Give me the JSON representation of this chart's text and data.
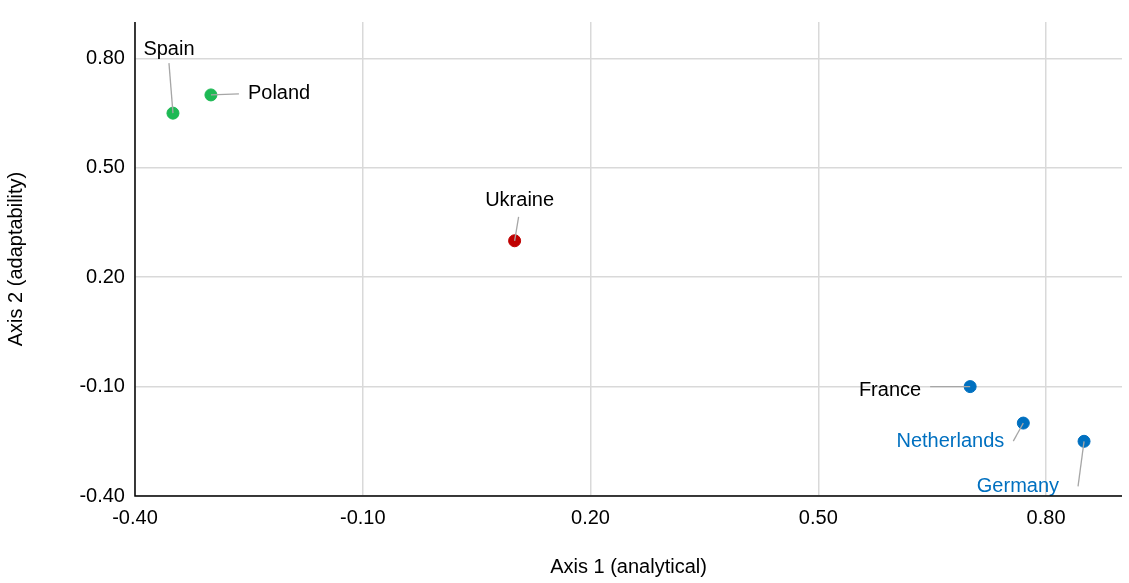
{
  "chart_data": {
    "type": "scatter",
    "xlabel": "Axis 1 (analytical)",
    "ylabel": "Axis 2 (adaptability)",
    "x": [
      -0.35,
      -0.3,
      0.1,
      0.7,
      0.77,
      0.85
    ],
    "values": [
      0.65,
      0.7,
      0.3,
      -0.1,
      -0.2,
      -0.25
    ],
    "colors": [
      "#1db954",
      "#1db954",
      "#c00000",
      "#0070c0",
      "#0070c0",
      "#0070c0"
    ],
    "xlim": [
      -0.4,
      0.9
    ],
    "ylim": [
      -0.4,
      0.9
    ],
    "xticks": [
      {
        "value": -0.4,
        "label": "-0.40"
      },
      {
        "value": -0.1,
        "label": "-0.10"
      },
      {
        "value": 0.2,
        "label": "0.20"
      },
      {
        "value": 0.5,
        "label": "0.50"
      },
      {
        "value": 0.8,
        "label": "0.80"
      }
    ],
    "yticks": [
      {
        "value": -0.4,
        "label": "-0.40"
      },
      {
        "value": -0.1,
        "label": "-0.10"
      },
      {
        "value": 0.2,
        "label": "0.20"
      },
      {
        "value": 0.5,
        "label": "0.50"
      },
      {
        "value": 0.8,
        "label": "0.80"
      }
    ],
    "grid": true,
    "marker": "circle",
    "legend": false,
    "annotations": [
      {
        "text": "Spain",
        "x": -0.35,
        "y": 0.65
      },
      {
        "text": "Poland",
        "x": -0.3,
        "y": 0.7
      },
      {
        "text": "Ukraine",
        "x": 0.1,
        "y": 0.3
      },
      {
        "text": "France",
        "x": 0.7,
        "y": -0.1
      },
      {
        "text": "Netherlands",
        "x": 0.77,
        "y": -0.2
      },
      {
        "text": "Germany",
        "x": 0.85,
        "y": -0.25
      }
    ]
  }
}
